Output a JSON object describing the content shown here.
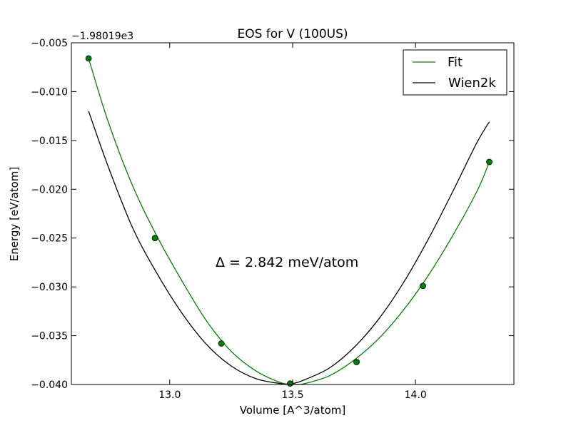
{
  "chart_data": {
    "type": "line",
    "title": "EOS for V (100US)",
    "xlabel": "Volume [A^3/atom]",
    "ylabel": "Energy [eV/atom]",
    "y_offset_label": "−1.98019e3",
    "xlim": [
      12.6,
      14.4
    ],
    "ylim": [
      -0.04,
      -0.005
    ],
    "x_ticks": [
      13.0,
      13.5,
      14.0
    ],
    "x_tick_labels": [
      "13.0",
      "13.5",
      "14.0"
    ],
    "y_ticks": [
      -0.005,
      -0.01,
      -0.015,
      -0.02,
      -0.025,
      -0.03,
      -0.035,
      -0.04
    ],
    "y_tick_labels": [
      "−0.005",
      "−0.010",
      "−0.015",
      "−0.020",
      "−0.025",
      "−0.030",
      "−0.035",
      "−0.040"
    ],
    "grid": false,
    "legend_position": "top-right",
    "annotation": "Δ = 2.842 meV/atom",
    "series": [
      {
        "name": "Fit",
        "color": "#008000",
        "kind": "line",
        "x": [
          12.67,
          12.75,
          12.85,
          12.95,
          13.05,
          13.15,
          13.25,
          13.35,
          13.45,
          13.5,
          13.55,
          13.65,
          13.75,
          13.85,
          13.95,
          14.05,
          14.15,
          14.25,
          14.3
        ],
        "y": [
          -0.0066,
          -0.0131,
          -0.0197,
          -0.0249,
          -0.0294,
          -0.0335,
          -0.0366,
          -0.0386,
          -0.0398,
          -0.04,
          -0.0399,
          -0.0391,
          -0.0375,
          -0.0353,
          -0.0324,
          -0.0289,
          -0.0248,
          -0.0202,
          -0.0172
        ]
      },
      {
        "name": "Wien2k",
        "color": "#000000",
        "kind": "line",
        "x": [
          12.67,
          12.75,
          12.85,
          12.95,
          13.05,
          13.15,
          13.25,
          13.35,
          13.45,
          13.5,
          13.55,
          13.65,
          13.75,
          13.85,
          13.95,
          14.05,
          14.15,
          14.25,
          14.3
        ],
        "y": [
          -0.012,
          -0.0177,
          -0.024,
          -0.0287,
          -0.0327,
          -0.0359,
          -0.0381,
          -0.0394,
          -0.0399,
          -0.0399,
          -0.0395,
          -0.0383,
          -0.0362,
          -0.0333,
          -0.0296,
          -0.0252,
          -0.0203,
          -0.0152,
          -0.0131
        ]
      },
      {
        "name": "Fit points",
        "color": "#008000",
        "kind": "points",
        "x": [
          12.67,
          12.94,
          13.21,
          13.49,
          13.76,
          14.03,
          14.3
        ],
        "y": [
          -0.0066,
          -0.025,
          -0.0358,
          -0.0399,
          -0.0377,
          -0.0299,
          -0.0172
        ]
      }
    ]
  }
}
